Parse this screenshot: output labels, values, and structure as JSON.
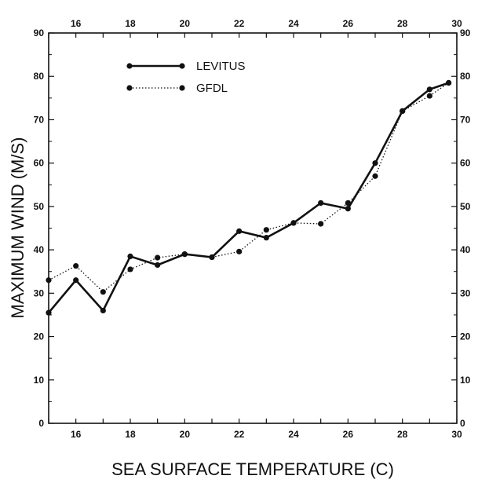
{
  "chart_data": {
    "type": "line",
    "title": "",
    "xlabel": "SEA SURFACE TEMPERATURE (C)",
    "ylabel": "MAXIMUM WIND (M/S)",
    "xlim": [
      15,
      30
    ],
    "ylim": [
      0,
      90
    ],
    "x_ticks_bottom": [
      16,
      18,
      20,
      22,
      24,
      26,
      28,
      30
    ],
    "x_ticks_top": [
      16,
      18,
      20,
      22,
      24,
      26,
      28,
      30
    ],
    "y_ticks": [
      0,
      10,
      20,
      30,
      40,
      50,
      60,
      70,
      80,
      90
    ],
    "grid": false,
    "legend_position": "top-left",
    "series": [
      {
        "name": "LEVITUS",
        "style": "solid",
        "color": "#111111",
        "x": [
          15,
          16,
          17,
          18,
          19,
          20,
          21,
          22,
          23,
          24,
          25,
          26,
          27,
          28,
          29,
          29.7
        ],
        "y": [
          25.5,
          33,
          26,
          38.5,
          36.5,
          39,
          38.3,
          44.3,
          42.8,
          46.2,
          50.8,
          49.5,
          60,
          72,
          77,
          78.5
        ]
      },
      {
        "name": "GFDL",
        "style": "dotted",
        "color": "#111111",
        "x": [
          15,
          16,
          17,
          18,
          19,
          20,
          21,
          22,
          23,
          24,
          25,
          26,
          27,
          28,
          29,
          29.7
        ],
        "y": [
          33,
          36.3,
          30.3,
          35.5,
          38.2,
          39,
          38.3,
          39.6,
          44.6,
          46.2,
          46,
          50.8,
          57,
          72,
          75.5,
          78.5
        ]
      }
    ]
  }
}
